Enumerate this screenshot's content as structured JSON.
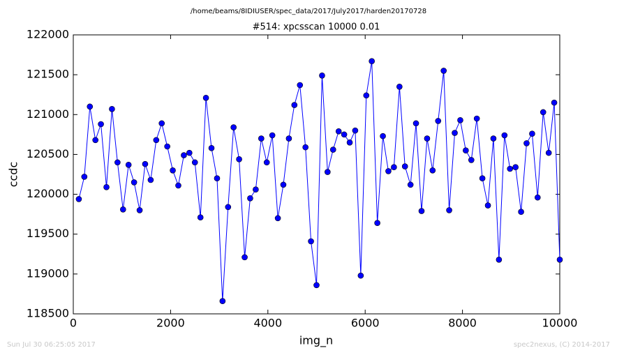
{
  "chart_data": {
    "type": "line",
    "suptitle": "/home/beams/8IDIUSER/spec_data/2017/July2017/harden20170728",
    "title": "#514: xpcsscan 10000 0.01",
    "xlabel": "img_n",
    "ylabel": "ccdc",
    "footer_left": "Sun Jul 30 06:25:05 2017",
    "footer_right": "spec2nexus, (C) 2014-2017",
    "x": [
      114,
      227,
      341,
      455,
      568,
      682,
      795,
      909,
      1023,
      1136,
      1250,
      1364,
      1477,
      1591,
      1705,
      1818,
      1932,
      2045,
      2159,
      2273,
      2386,
      2500,
      2614,
      2727,
      2841,
      2955,
      3068,
      3182,
      3295,
      3409,
      3523,
      3636,
      3750,
      3864,
      3977,
      4091,
      4205,
      4318,
      4432,
      4545,
      4659,
      4773,
      4886,
      5000,
      5114,
      5227,
      5341,
      5455,
      5568,
      5682,
      5795,
      5909,
      6023,
      6136,
      6250,
      6364,
      6477,
      6591,
      6705,
      6818,
      6932,
      7045,
      7159,
      7273,
      7386,
      7500,
      7614,
      7727,
      7841,
      7955,
      8068,
      8182,
      8295,
      8409,
      8523,
      8636,
      8750,
      8864,
      8977,
      9091,
      9205,
      9318,
      9432,
      9545,
      9659,
      9773,
      9886,
      10000
    ],
    "series": [
      {
        "color": "#0000ff",
        "values": [
          119940,
          120220,
          121100,
          120680,
          120880,
          120090,
          121070,
          120400,
          119810,
          120370,
          120150,
          119800,
          120380,
          120180,
          120680,
          120890,
          120600,
          120300,
          120110,
          120490,
          120520,
          120400,
          119710,
          121210,
          120580,
          120200,
          118660,
          119840,
          120840,
          120440,
          119210,
          119950,
          120060,
          120700,
          120400,
          120740,
          119700,
          120120,
          120700,
          121120,
          121370,
          120590,
          119410,
          118860,
          121490,
          120280,
          120560,
          120790,
          120750,
          120650,
          120800,
          118980,
          121240,
          121670,
          119640,
          120730,
          120290,
          120340,
          121350,
          120350,
          120120,
          120890,
          119790,
          120700,
          120300,
          120920,
          121550,
          119800,
          120770,
          120930,
          120550,
          120430,
          120950,
          120200,
          119860,
          120700,
          119180,
          120740,
          120320,
          120340,
          119780,
          120640,
          120760,
          119960,
          121030,
          120520,
          121150,
          119180
        ]
      }
    ],
    "xlim": [
      0,
      10000
    ],
    "xticks": [
      0,
      2000,
      4000,
      6000,
      8000,
      10000
    ],
    "ylim": [
      118500,
      122000
    ],
    "yticks": [
      118500,
      119000,
      119500,
      120000,
      120500,
      121000,
      121500,
      122000
    ]
  }
}
